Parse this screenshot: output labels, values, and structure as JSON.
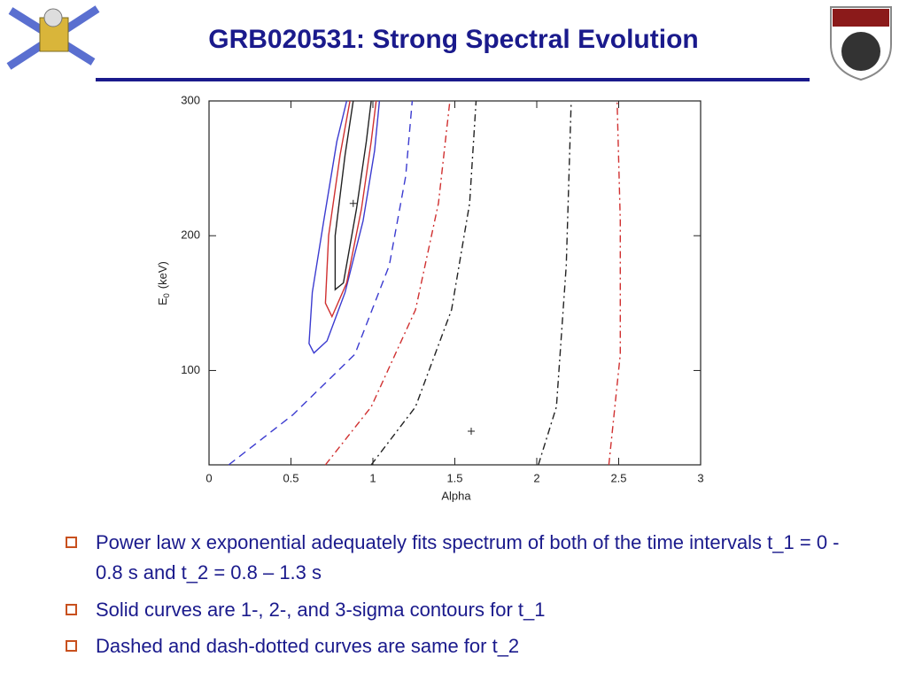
{
  "header": {
    "title": "GRB020531: Strong Spectral Evolution"
  },
  "chart_data": {
    "type": "contour",
    "xlabel": "Alpha",
    "ylabel": {
      "main": "E",
      "sub": "0",
      "unit": "(keV)"
    },
    "xlim": [
      0,
      3
    ],
    "ylim": [
      30,
      300
    ],
    "xticks": [
      0,
      0.5,
      1,
      1.5,
      2,
      2.5,
      3
    ],
    "yticks": [
      100,
      200,
      300
    ],
    "series": [
      {
        "color": "#3b3bd0",
        "dash": "solid",
        "x": [
          0.84,
          0.78,
          0.7,
          0.63,
          0.61,
          0.64,
          0.72,
          0.83,
          0.94,
          1.01,
          1.04
        ],
        "y": [
          300,
          270,
          211,
          158,
          120,
          113,
          122,
          158,
          211,
          263,
          300
        ]
      },
      {
        "color": "#d03030",
        "dash": "solid",
        "x": [
          0.86,
          0.8,
          0.73,
          0.71,
          0.75,
          0.84,
          0.93,
          0.99,
          1.02
        ],
        "y": [
          300,
          260,
          200,
          150,
          140,
          165,
          220,
          270,
          300
        ]
      },
      {
        "color": "#222222",
        "dash": "solid",
        "x": [
          0.88,
          0.83,
          0.77,
          0.77,
          0.82,
          0.9,
          0.96,
          0.99
        ],
        "y": [
          300,
          260,
          200,
          160,
          165,
          220,
          270,
          300
        ]
      },
      {
        "color": "#3b3bd0",
        "dash": "dashed",
        "x": [
          0.12,
          0.51,
          0.89,
          1.1,
          1.2,
          1.24
        ],
        "y": [
          30,
          67,
          112,
          178,
          244,
          300
        ]
      },
      {
        "color": "#d03030",
        "dash": "dashdot",
        "x": [
          0.71,
          0.99,
          1.26,
          1.4,
          1.47
        ],
        "y": [
          30,
          73,
          145,
          224,
          300
        ]
      },
      {
        "color": "#222222",
        "dash": "dashdot",
        "x": [
          0.99,
          1.26,
          1.48,
          1.59,
          1.63
        ],
        "y": [
          30,
          73,
          145,
          224,
          300
        ]
      },
      {
        "color": "#222222",
        "dash": "dashdot",
        "x": [
          2.01,
          2.12,
          2.18,
          2.21
        ],
        "y": [
          30,
          73,
          178,
          300
        ]
      },
      {
        "color": "#d03030",
        "dash": "dashdot",
        "x": [
          2.44,
          2.51,
          2.51,
          2.49
        ],
        "y": [
          30,
          112,
          211,
          300
        ]
      }
    ],
    "best_fits": {
      "x": [
        0.88,
        1.6
      ],
      "y": [
        224,
        55
      ]
    }
  },
  "bullets": [
    "Power law x exponential adequately fits spectrum of both of the time intervals t_1 = 0 - 0.8 s and t_2 = 0.8 – 1.3 s",
    "Solid curves are 1-, 2-, and 3-sigma contours for t_1",
    "Dashed and dash-dotted curves are same for t_2"
  ]
}
